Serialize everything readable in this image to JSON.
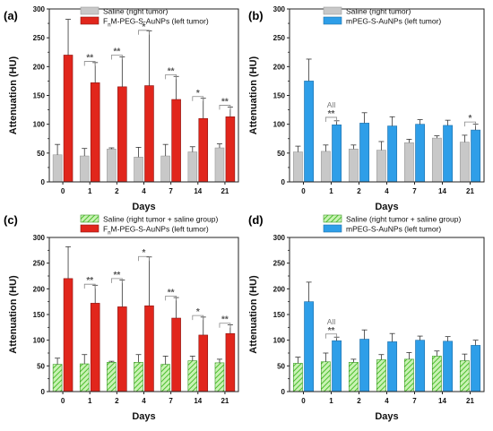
{
  "chart_data": [
    {
      "type": "bar",
      "panel_label": "(a)",
      "xlabel": "Days",
      "ylabel": "Attenuation (HU)",
      "categories": [
        "0",
        "1",
        "2",
        "4",
        "7",
        "14",
        "21"
      ],
      "ylim": [
        0,
        300
      ],
      "yticks": [
        "0",
        "50",
        "100",
        "150",
        "200",
        "250",
        "300"
      ],
      "legend_position": "top-center",
      "series": [
        {
          "name": "Saline (right tumor)",
          "color": "#c8c8c8",
          "pattern": "solid",
          "values": [
            47,
            45,
            57,
            43,
            45,
            52,
            59
          ],
          "errors": [
            18,
            13,
            2,
            17,
            20,
            9,
            7
          ]
        },
        {
          "name_prefix": "F",
          "name_sub": "n",
          "name_rest": "M-PEG-S-AuNPs (left tumor)",
          "color": "#e1261c",
          "pattern": "solid",
          "values": [
            220,
            172,
            165,
            167,
            143,
            110,
            113
          ],
          "errors": [
            62,
            35,
            52,
            95,
            40,
            35,
            17
          ]
        }
      ],
      "annotations": [
        {
          "text": "**",
          "category": "1",
          "top": 209
        },
        {
          "text": "**",
          "category": "2",
          "top": 220
        },
        {
          "text": "*",
          "category": "4",
          "top": 263
        },
        {
          "text": "**",
          "category": "7",
          "top": 186
        },
        {
          "text": "*",
          "category": "14",
          "top": 148
        },
        {
          "text": "**",
          "category": "21",
          "top": 133
        }
      ]
    },
    {
      "type": "bar",
      "panel_label": "(b)",
      "xlabel": "Days",
      "ylabel": "Attenuation (HU)",
      "categories": [
        "0",
        "1",
        "2",
        "4",
        "7",
        "14",
        "21"
      ],
      "ylim": [
        0,
        300
      ],
      "yticks": [
        "0",
        "50",
        "100",
        "150",
        "200",
        "250",
        "300"
      ],
      "legend_position": "top-center",
      "series": [
        {
          "name": "Saline (right tumor)",
          "color": "#c8c8c8",
          "pattern": "solid",
          "values": [
            52,
            53,
            57,
            55,
            68,
            76,
            69
          ],
          "errors": [
            10,
            11,
            7,
            15,
            6,
            4,
            12
          ]
        },
        {
          "name": "mPEG-S-AuNPs (left tumor)",
          "color": "#2e9ee8",
          "pattern": "solid",
          "values": [
            175,
            99,
            102,
            97,
            100,
            98,
            90
          ],
          "errors": [
            38,
            7,
            18,
            16,
            8,
            9,
            10
          ]
        }
      ],
      "annotations": [
        {
          "text": "**",
          "category": "1",
          "top": 112,
          "note": "All"
        },
        {
          "text": "*",
          "category": "21",
          "top": 104
        }
      ]
    },
    {
      "type": "bar",
      "panel_label": "(c)",
      "xlabel": "Days",
      "ylabel": "Attenuation (HU)",
      "categories": [
        "0",
        "1",
        "2",
        "4",
        "7",
        "14",
        "21"
      ],
      "ylim": [
        0,
        300
      ],
      "yticks": [
        "0",
        "50",
        "100",
        "150",
        "200",
        "250",
        "300"
      ],
      "legend_position": "top-center",
      "series": [
        {
          "name": "Saline (right tumor + saline group)",
          "color": "#7ed957",
          "pattern": "hatched",
          "values": [
            53,
            54,
            57,
            57,
            53,
            60,
            56
          ],
          "errors": [
            12,
            18,
            2,
            15,
            16,
            9,
            7
          ]
        },
        {
          "name_prefix": "F",
          "name_sub": "n",
          "name_rest": "M-PEG-S-AuNPs (left tumor)",
          "color": "#e1261c",
          "pattern": "solid",
          "values": [
            220,
            172,
            165,
            167,
            143,
            110,
            113
          ],
          "errors": [
            62,
            35,
            52,
            95,
            40,
            35,
            17
          ]
        }
      ],
      "annotations": [
        {
          "text": "**",
          "category": "1",
          "top": 209
        },
        {
          "text": "**",
          "category": "2",
          "top": 220
        },
        {
          "text": "*",
          "category": "4",
          "top": 263
        },
        {
          "text": "**",
          "category": "7",
          "top": 186
        },
        {
          "text": "*",
          "category": "14",
          "top": 148
        },
        {
          "text": "**",
          "category": "21",
          "top": 133
        }
      ]
    },
    {
      "type": "bar",
      "panel_label": "(d)",
      "xlabel": "Days",
      "ylabel": "Attenuation (HU)",
      "categories": [
        "0",
        "1",
        "2",
        "4",
        "7",
        "14",
        "21"
      ],
      "ylim": [
        0,
        300
      ],
      "yticks": [
        "0",
        "50",
        "100",
        "150",
        "200",
        "250",
        "300"
      ],
      "legend_position": "top-center",
      "series": [
        {
          "name": "Saline (right tumor + saline group)",
          "color": "#7ed957",
          "pattern": "hatched",
          "values": [
            55,
            58,
            57,
            62,
            63,
            69,
            60
          ],
          "errors": [
            12,
            17,
            6,
            10,
            13,
            10,
            13
          ]
        },
        {
          "name": "mPEG-S-AuNPs (left tumor)",
          "color": "#2e9ee8",
          "pattern": "solid",
          "values": [
            175,
            99,
            102,
            97,
            100,
            98,
            90
          ],
          "errors": [
            38,
            7,
            18,
            16,
            8,
            9,
            10
          ]
        }
      ],
      "annotations": [
        {
          "text": "**",
          "category": "1",
          "top": 112,
          "note": "All"
        }
      ]
    }
  ]
}
